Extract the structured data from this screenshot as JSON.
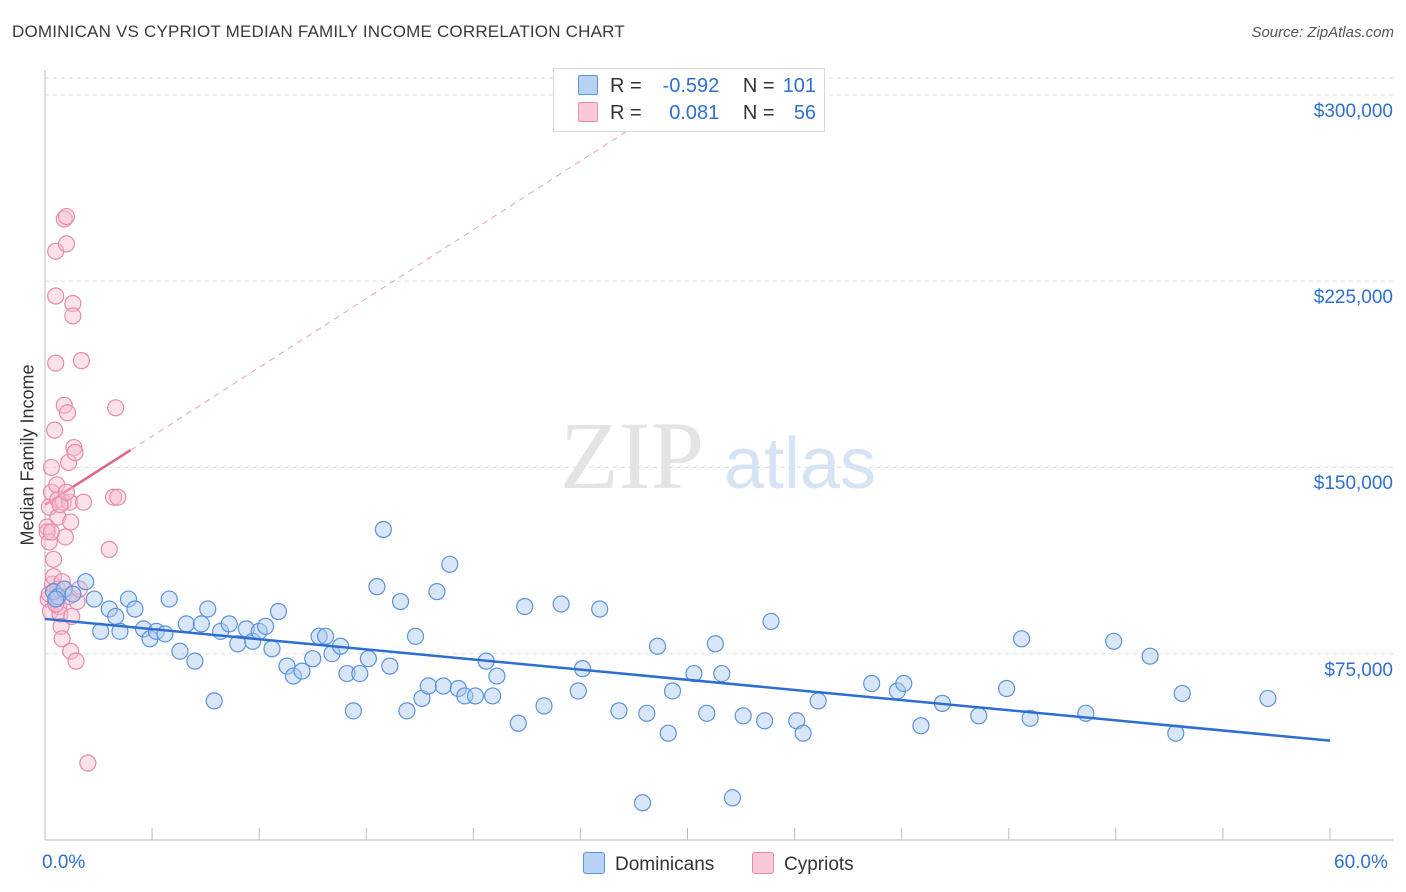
{
  "title": "DOMINICAN VS CYPRIOT MEDIAN FAMILY INCOME CORRELATION CHART",
  "source": "Source: ZipAtlas.com",
  "watermark": {
    "zip": "ZIP",
    "atlas": "atlas"
  },
  "legend": {
    "rows": [
      {
        "r_label": "R =",
        "r_value": "-0.592",
        "n_label": "N =",
        "n_value": "101"
      },
      {
        "r_label": "R =",
        "r_value": "0.081",
        "n_label": "N =",
        "n_value": "56"
      }
    ]
  },
  "bottom_legend": [
    "Dominicans",
    "Cypriots"
  ],
  "colors": {
    "blue_fill": "#a9c8f0",
    "blue_stroke": "#5b93dd",
    "blue_line": "#2d6fd0",
    "pink_fill": "#f7bcd0",
    "pink_stroke": "#e78aab",
    "pink_line": "#e0648f",
    "grid": "#dddddd",
    "axis_text": "#2d6fd0"
  },
  "chart_data": {
    "type": "scatter",
    "title": "DOMINICAN VS CYPRIOT MEDIAN FAMILY INCOME CORRELATION CHART",
    "xlabel": "",
    "ylabel": "Median Family Income",
    "xlim": [
      0,
      60
    ],
    "ylim": [
      0,
      310000
    ],
    "x_tick_labels": [
      "0.0%",
      "60.0%"
    ],
    "y_ticks": [
      75000,
      150000,
      225000,
      300000
    ],
    "y_tick_labels": [
      "$75,000",
      "$150,000",
      "$225,000",
      "$300,000"
    ],
    "series": [
      {
        "name": "Dominicans",
        "r": -0.592,
        "n": 101,
        "trend": {
          "x": [
            0,
            60
          ],
          "y": [
            89000,
            40000
          ],
          "style": "solid"
        },
        "points": [
          [
            0.4,
            100000
          ],
          [
            0.6,
            98000
          ],
          [
            0.9,
            101000
          ],
          [
            1.3,
            99000
          ],
          [
            1.9,
            104000
          ],
          [
            2.3,
            97000
          ],
          [
            2.6,
            84000
          ],
          [
            3.0,
            93000
          ],
          [
            3.3,
            90000
          ],
          [
            3.5,
            84000
          ],
          [
            3.9,
            97000
          ],
          [
            4.2,
            93000
          ],
          [
            4.6,
            85000
          ],
          [
            4.9,
            81000
          ],
          [
            5.2,
            84000
          ],
          [
            5.6,
            83000
          ],
          [
            5.8,
            97000
          ],
          [
            6.3,
            76000
          ],
          [
            6.6,
            87000
          ],
          [
            7.0,
            72000
          ],
          [
            7.3,
            87000
          ],
          [
            7.6,
            93000
          ],
          [
            7.9,
            56000
          ],
          [
            8.2,
            84000
          ],
          [
            8.6,
            87000
          ],
          [
            9.0,
            79000
          ],
          [
            9.4,
            85000
          ],
          [
            9.7,
            80000
          ],
          [
            10.0,
            84000
          ],
          [
            10.3,
            86000
          ],
          [
            10.6,
            77000
          ],
          [
            10.9,
            92000
          ],
          [
            11.3,
            70000
          ],
          [
            11.6,
            66000
          ],
          [
            12.0,
            68000
          ],
          [
            12.5,
            73000
          ],
          [
            12.8,
            82000
          ],
          [
            13.1,
            82000
          ],
          [
            13.4,
            75000
          ],
          [
            13.8,
            78000
          ],
          [
            14.1,
            67000
          ],
          [
            14.4,
            52000
          ],
          [
            14.7,
            67000
          ],
          [
            15.1,
            73000
          ],
          [
            15.5,
            102000
          ],
          [
            15.8,
            125000
          ],
          [
            16.1,
            70000
          ],
          [
            16.6,
            96000
          ],
          [
            16.9,
            52000
          ],
          [
            17.3,
            82000
          ],
          [
            17.6,
            57000
          ],
          [
            17.9,
            62000
          ],
          [
            18.3,
            100000
          ],
          [
            18.6,
            62000
          ],
          [
            18.9,
            111000
          ],
          [
            19.3,
            61000
          ],
          [
            19.6,
            58000
          ],
          [
            20.1,
            58000
          ],
          [
            20.6,
            72000
          ],
          [
            21.1,
            66000
          ],
          [
            20.9,
            58000
          ],
          [
            22.1,
            47000
          ],
          [
            22.4,
            94000
          ],
          [
            23.3,
            54000
          ],
          [
            24.1,
            95000
          ],
          [
            24.9,
            60000
          ],
          [
            25.1,
            69000
          ],
          [
            25.9,
            93000
          ],
          [
            26.8,
            52000
          ],
          [
            27.9,
            15000
          ],
          [
            28.1,
            51000
          ],
          [
            28.6,
            78000
          ],
          [
            29.1,
            43000
          ],
          [
            29.3,
            60000
          ],
          [
            30.3,
            67000
          ],
          [
            30.9,
            51000
          ],
          [
            31.3,
            79000
          ],
          [
            31.6,
            67000
          ],
          [
            32.1,
            17000
          ],
          [
            32.6,
            50000
          ],
          [
            33.6,
            48000
          ],
          [
            33.9,
            88000
          ],
          [
            35.1,
            48000
          ],
          [
            35.4,
            43000
          ],
          [
            36.1,
            56000
          ],
          [
            38.6,
            63000
          ],
          [
            39.8,
            60000
          ],
          [
            40.1,
            63000
          ],
          [
            40.9,
            46000
          ],
          [
            41.9,
            55000
          ],
          [
            43.6,
            50000
          ],
          [
            44.9,
            61000
          ],
          [
            45.6,
            81000
          ],
          [
            46.0,
            49000
          ],
          [
            48.6,
            51000
          ],
          [
            49.9,
            80000
          ],
          [
            51.6,
            74000
          ],
          [
            52.8,
            43000
          ],
          [
            53.1,
            59000
          ],
          [
            57.1,
            57000
          ],
          [
            0.5,
            97000
          ]
        ]
      },
      {
        "name": "Cypriots",
        "r": 0.081,
        "n": 56,
        "trend": {
          "x": [
            0,
            4
          ],
          "y": [
            135000,
            157000
          ],
          "style": "solid",
          "extended": {
            "x": [
              4,
              28
            ],
            "y": [
              157000,
              290000
            ],
            "style": "dashed"
          }
        },
        "points": [
          [
            0.1,
            126000
          ],
          [
            0.1,
            124000
          ],
          [
            0.15,
            97000
          ],
          [
            0.2,
            134000
          ],
          [
            0.2,
            120000
          ],
          [
            0.25,
            92000
          ],
          [
            0.3,
            140000
          ],
          [
            0.3,
            150000
          ],
          [
            0.35,
            103000
          ],
          [
            0.4,
            106000
          ],
          [
            0.4,
            113000
          ],
          [
            0.45,
            165000
          ],
          [
            0.5,
            237000
          ],
          [
            0.5,
            219000
          ],
          [
            0.5,
            192000
          ],
          [
            0.55,
            143000
          ],
          [
            0.6,
            137000
          ],
          [
            0.6,
            130000
          ],
          [
            0.6,
            101000
          ],
          [
            0.65,
            94000
          ],
          [
            0.7,
            91000
          ],
          [
            0.75,
            86000
          ],
          [
            0.8,
            81000
          ],
          [
            0.85,
            136000
          ],
          [
            0.9,
            250000
          ],
          [
            0.9,
            175000
          ],
          [
            0.95,
            122000
          ],
          [
            1.0,
            240000
          ],
          [
            1.0,
            251000
          ],
          [
            1.05,
            172000
          ],
          [
            1.1,
            152000
          ],
          [
            1.1,
            98000
          ],
          [
            1.15,
            136000
          ],
          [
            1.2,
            76000
          ],
          [
            1.25,
            90000
          ],
          [
            1.3,
            216000
          ],
          [
            1.3,
            211000
          ],
          [
            1.35,
            158000
          ],
          [
            1.4,
            156000
          ],
          [
            1.45,
            72000
          ],
          [
            1.5,
            96000
          ],
          [
            1.6,
            101000
          ],
          [
            1.7,
            193000
          ],
          [
            1.8,
            136000
          ],
          [
            2.0,
            31000
          ],
          [
            3.0,
            117000
          ],
          [
            3.2,
            138000
          ],
          [
            3.3,
            174000
          ],
          [
            3.4,
            138000
          ],
          [
            0.3,
            124000
          ],
          [
            0.7,
            135000
          ],
          [
            1.0,
            140000
          ],
          [
            0.2,
            99000
          ],
          [
            0.5,
            95000
          ],
          [
            1.2,
            128000
          ],
          [
            0.8,
            104000
          ]
        ]
      }
    ]
  }
}
